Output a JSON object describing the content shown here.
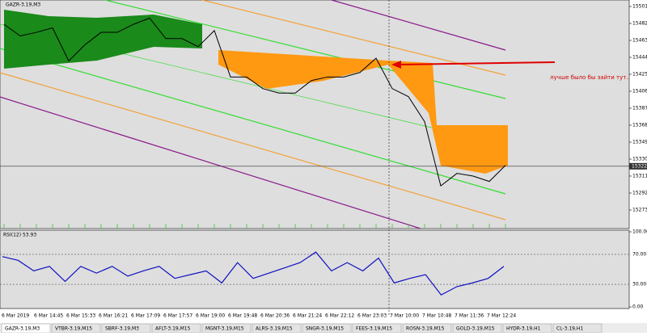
{
  "window": {
    "title": "GAZR-3.19,M3",
    "annotation": "лучше было бы зайти тут.."
  },
  "price_chart": {
    "ylim": [
      15273,
      15501
    ],
    "yticks": [
      15501,
      15482,
      15463,
      15444,
      15425,
      15406,
      15387,
      15368,
      15349,
      15330,
      15311,
      15292,
      15273
    ],
    "current_price": 15322,
    "values": [
      15481,
      15468,
      15472,
      15477,
      15440,
      15458,
      15472,
      15472,
      15481,
      15488,
      15465,
      15465,
      15456,
      15474,
      15422,
      15422,
      15409,
      15404,
      15404,
      15418,
      15422,
      15422,
      15427,
      15443,
      15409,
      15400,
      15372,
      15300,
      15314,
      15311,
      15305,
      15323
    ]
  },
  "rsi": {
    "label": "RSI(12) 53.93",
    "ylim": [
      0,
      100
    ],
    "yticks": [
      {
        "value": 100,
        "label": "100.00"
      },
      {
        "value": 70,
        "label": "70.00"
      },
      {
        "value": 30,
        "label": "30.00"
      },
      {
        "value": 0,
        "label": "0.00"
      }
    ],
    "values": [
      67,
      62,
      48,
      54,
      34,
      54,
      45,
      54,
      41,
      48,
      54,
      38,
      43,
      48,
      32,
      59,
      38,
      45,
      52,
      59,
      73,
      48,
      59,
      48,
      65,
      32,
      38,
      43,
      16,
      27,
      32,
      38,
      54
    ]
  },
  "time_axis": [
    "6 Mar 2019",
    "6 Mar 14:45",
    "6 Mar 15:33",
    "6 Mar 16:21",
    "6 Mar 17:09",
    "6 Mar 17:57",
    "6 Mar 19:00",
    "6 Mar 19:48",
    "6 Mar 20:36",
    "6 Mar 21:24",
    "6 Mar 22:12",
    "6 Mar 23:03",
    "7 Mar 10:00",
    "7 Mar 10:48",
    "7 Mar 11:36",
    "7 Mar 12:24"
  ],
  "tabs": [
    "GAZR-3.19,M3",
    "VTBR-3.19,M15",
    "SBRF-3.19,M3",
    "AFLT-3.19,M15",
    "MGNT-3.19,M15",
    "ALRS-3.19,M15",
    "SNGR-3.19,M15",
    "FEES-3.19,M15",
    "ROSN-3.19,M15",
    "GOLD-3.19,M15",
    "HYDR-3.19,H1",
    "CL-3.19,H1"
  ]
}
